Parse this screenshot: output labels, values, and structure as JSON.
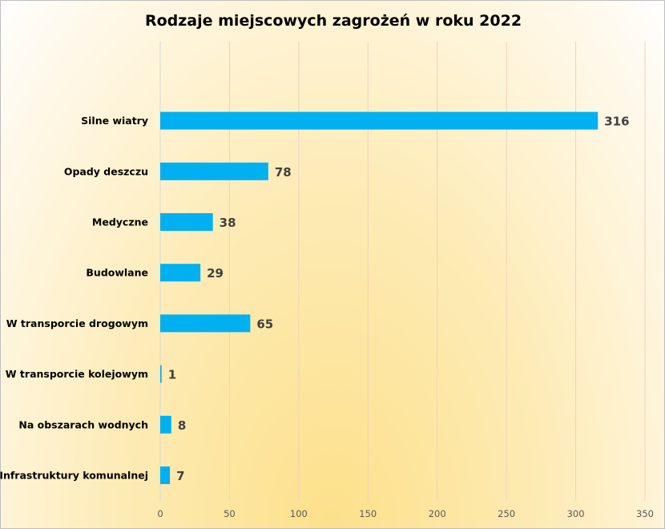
{
  "chart_data": {
    "type": "bar",
    "orientation": "horizontal",
    "title": "Rodzaje miejscowych zagrożeń w roku 2022",
    "categories": [
      "Silne wiatry",
      "Opady deszczu",
      "Medyczne",
      "Budowlane",
      "W transporcie drogowym",
      "W transporcie kolejowym",
      "Na obszarach wodnych",
      "Infrastruktury komunalnej"
    ],
    "values": [
      316,
      78,
      38,
      29,
      65,
      1,
      8,
      7
    ],
    "xlim": [
      0,
      350
    ],
    "xticks": [
      0,
      50,
      100,
      150,
      200,
      250,
      300,
      350
    ],
    "xlabel": "",
    "ylabel": "",
    "grid": true,
    "bar_color": "#00b0f0",
    "grid_color": "#f2d0c0"
  }
}
